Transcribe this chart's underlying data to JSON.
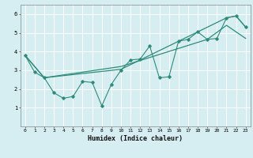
{
  "xlabel": "Humidex (Indice chaleur)",
  "xlim": [
    -0.5,
    23.5
  ],
  "ylim": [
    0,
    6.5
  ],
  "yticks": [
    1,
    2,
    3,
    4,
    5,
    6
  ],
  "xticks": [
    0,
    1,
    2,
    3,
    4,
    5,
    6,
    7,
    8,
    9,
    10,
    11,
    12,
    13,
    14,
    15,
    16,
    17,
    18,
    19,
    20,
    21,
    22,
    23
  ],
  "bg_color": "#d6eef2",
  "grid_color": "#ffffff",
  "line_color": "#2e8b7a",
  "line1_x": [
    0,
    1,
    2,
    3,
    4,
    5,
    6,
    7,
    8,
    9,
    10,
    11,
    12,
    13,
    14,
    15,
    16,
    17,
    18,
    19,
    20,
    21,
    22,
    23
  ],
  "line1_y": [
    3.8,
    2.9,
    2.6,
    1.8,
    1.5,
    1.6,
    2.4,
    2.35,
    1.1,
    2.25,
    3.0,
    3.55,
    3.6,
    4.3,
    2.6,
    2.65,
    4.55,
    4.65,
    5.05,
    4.65,
    4.7,
    5.8,
    5.9,
    5.3
  ],
  "line2_x": [
    0,
    2,
    10,
    21,
    22,
    23
  ],
  "line2_y": [
    3.8,
    2.6,
    3.05,
    5.8,
    5.9,
    5.3
  ],
  "line3_x": [
    0,
    2,
    10,
    19,
    21,
    23
  ],
  "line3_y": [
    3.8,
    2.6,
    3.2,
    4.65,
    5.4,
    4.7
  ],
  "figsize": [
    3.2,
    2.0
  ],
  "dpi": 100
}
